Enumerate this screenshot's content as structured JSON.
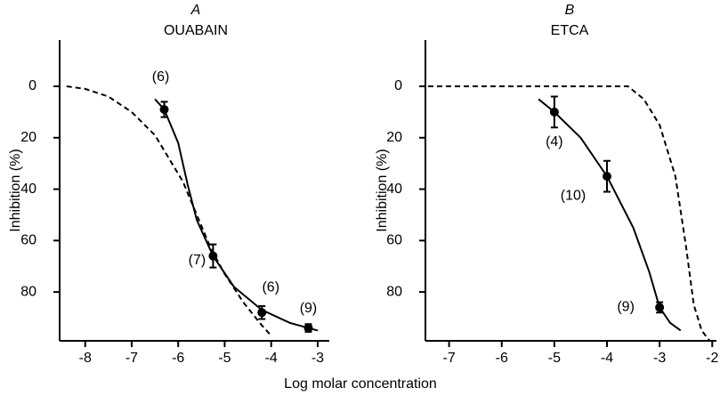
{
  "chart_data": [
    {
      "type": "line",
      "label": "A",
      "title": "OUABAIN",
      "ylabel": "Inhibition (%)",
      "xlabel": "Log molar concentration",
      "xlim": [
        -8.55,
        -2.75
      ],
      "ylim": [
        99,
        -18
      ],
      "xticks": [
        -8,
        -7,
        -6,
        -5,
        -4,
        -3
      ],
      "yticks": [
        0,
        20,
        40,
        60,
        80
      ],
      "series": [
        {
          "x": [
            -6.3,
            -5.25,
            -4.2,
            -3.2
          ],
          "values": [
            9,
            66,
            88,
            94
          ],
          "errors": [
            3,
            4.5,
            2.5,
            1.5
          ],
          "point_labels": [
            "(6)",
            "(7)",
            "(6)",
            "(9)"
          ],
          "color": "#000"
        },
        {
          "x": [
            -6.5,
            -6.3,
            -6.0,
            -5.8,
            -5.6,
            -5.25,
            -4.8,
            -4.2,
            -3.6,
            -3.2,
            -3.0
          ],
          "values": [
            5,
            9,
            22,
            38,
            52,
            66,
            78,
            87,
            92,
            94,
            95
          ],
          "dashed": false,
          "color": "#000"
        },
        {
          "x": [
            -8.4,
            -8.0,
            -7.5,
            -7.0,
            -6.5,
            -6.2,
            -5.9,
            -5.6,
            -5.3,
            -5.0,
            -4.6,
            -4.2,
            -4.0
          ],
          "values": [
            0,
            1,
            4,
            10,
            19,
            28,
            37,
            50,
            63,
            73,
            84,
            93,
            97
          ],
          "dashed": true,
          "color": "#000"
        }
      ]
    },
    {
      "type": "line",
      "label": "B",
      "title": "ETCA",
      "ylabel": "Inhibition (%)",
      "xlim": [
        -7.45,
        -1.92
      ],
      "ylim": [
        99,
        -18
      ],
      "xticks": [
        -7,
        -6,
        -5,
        -4,
        -3,
        -2
      ],
      "yticks": [
        0,
        20,
        40,
        60,
        80
      ],
      "series": [
        {
          "x": [
            -5,
            -4,
            -3
          ],
          "values": [
            10,
            35,
            86
          ],
          "errors": [
            6,
            6,
            2
          ],
          "point_labels": [
            "(4)",
            "(10)",
            "(9)"
          ],
          "color": "#000"
        },
        {
          "x": [
            -5.3,
            -5.0,
            -4.5,
            -4.0,
            -3.5,
            -3.2,
            -3.0,
            -2.8,
            -2.6
          ],
          "values": [
            5,
            10,
            20,
            35,
            55,
            72,
            86,
            92,
            95
          ],
          "dashed": false,
          "color": "#000"
        },
        {
          "x": [
            -7.4,
            -4.0,
            -3.6,
            -3.3,
            -3.0,
            -2.7,
            -2.5,
            -2.35,
            -2.2,
            -2.05
          ],
          "values": [
            0,
            0,
            0,
            5,
            15,
            35,
            62,
            85,
            95,
            99
          ],
          "dashed": true,
          "color": "#000"
        }
      ]
    }
  ]
}
